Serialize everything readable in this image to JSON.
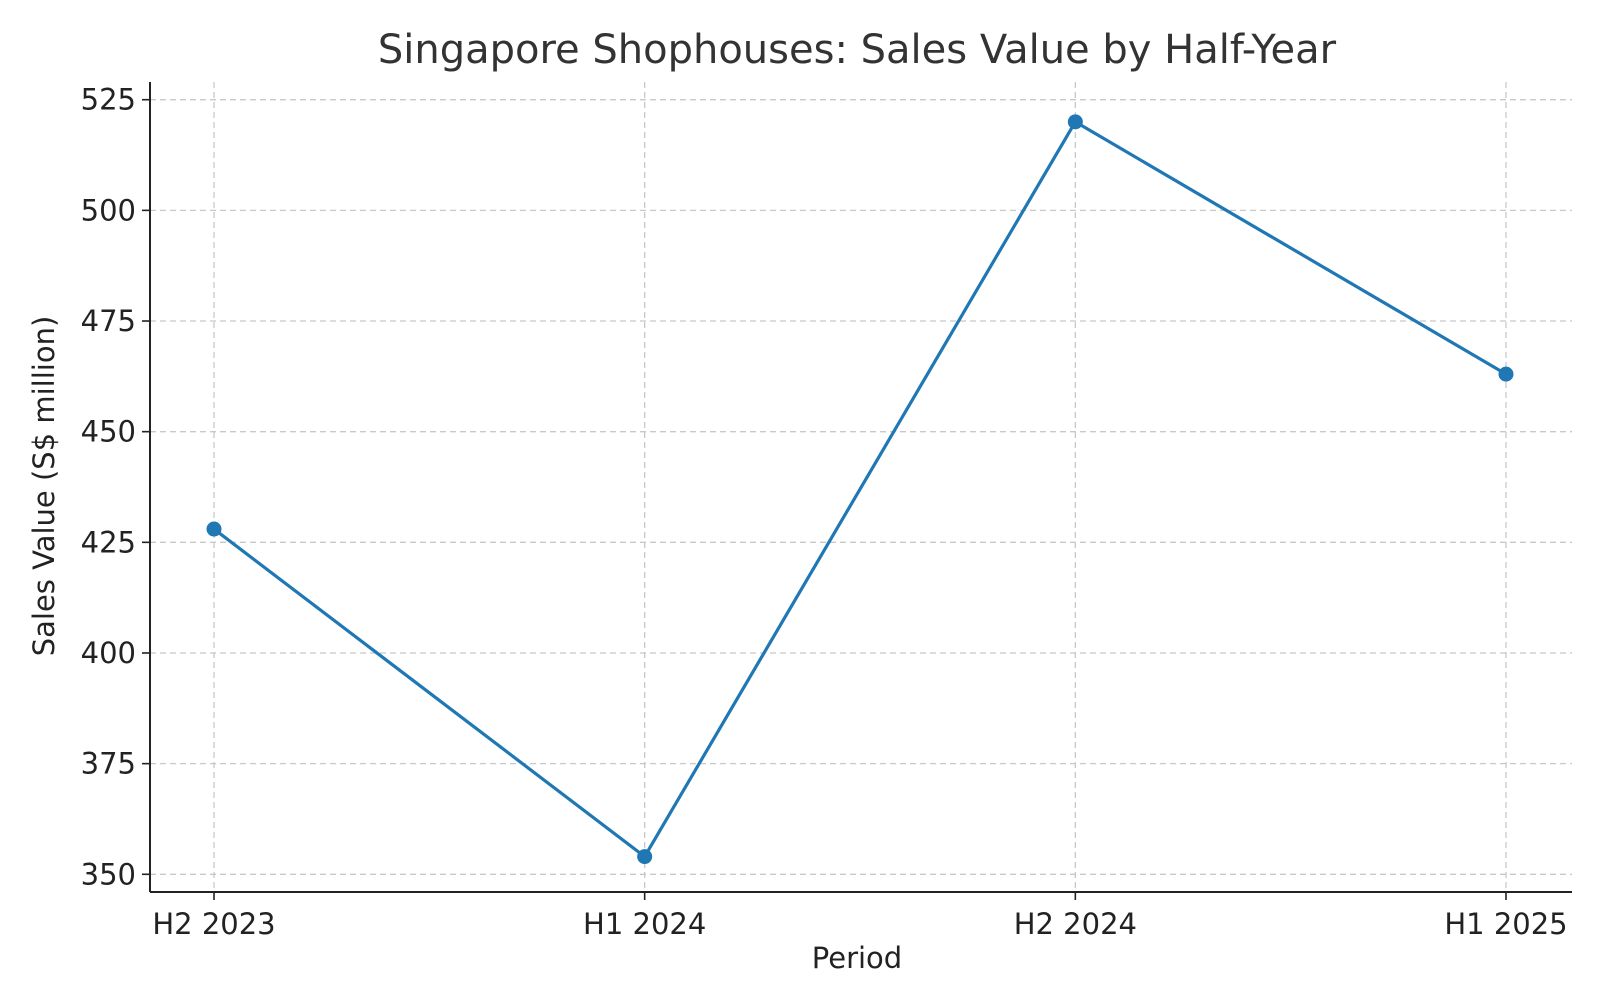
{
  "chart_data": {
    "type": "line",
    "title": "Singapore Shophouses: Sales Value by Half-Year",
    "xlabel": "Period",
    "ylabel": "Sales Value (S$ million)",
    "categories": [
      "H2 2023",
      "H1 2024",
      "H2 2024",
      "H1 2025"
    ],
    "series": [
      {
        "values": [
          428,
          354,
          520,
          463
        ],
        "color": "#1f77b4"
      }
    ],
    "ylim": [
      346,
      529
    ],
    "yticks": [
      350,
      375,
      400,
      425,
      450,
      475,
      500,
      525
    ],
    "grid": true,
    "legend": "none"
  }
}
